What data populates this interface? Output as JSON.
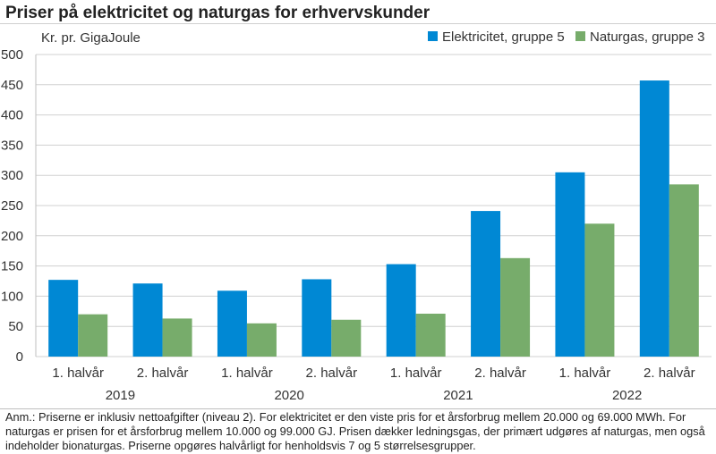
{
  "header": {
    "title": "Priser på elektricitet og naturgas for erhvervskunder"
  },
  "note": {
    "text": "Anm.: Priserne er inklusiv nettoafgifter (niveau 2). For elektricitet er den viste pris for et årsforbrug mellem 20.000 og 69.000 MWh. For naturgas er prisen for et årsforbrug mellem 10.000 og 99.000 GJ. Prisen dækker ledningsgas, der primært udgøres af naturgas, men også indeholder bionaturgas. Priserne opgøres halvårligt for henholdsvis 7 og 5 størrelsesgrupper."
  },
  "chart_data": {
    "type": "bar",
    "title": "Priser på elektricitet og naturgas for erhvervskunder",
    "ylabel": "Kr. pr. GigaJoule",
    "xlabel": "",
    "categories": [
      "1. halvår",
      "2. halvår",
      "1. halvår",
      "2. halvår",
      "1. halvår",
      "2. halvår",
      "1. halvår",
      "2. halvår"
    ],
    "groups": [
      {
        "label": "2019",
        "span": 2
      },
      {
        "label": "2020",
        "span": 2
      },
      {
        "label": "2021",
        "span": 2
      },
      {
        "label": "2022",
        "span": 2
      }
    ],
    "series": [
      {
        "name": "Elektricitet, gruppe 5",
        "color": "#0088d4",
        "values": [
          127,
          121,
          109,
          128,
          153,
          241,
          305,
          457
        ]
      },
      {
        "name": "Naturgas, gruppe 3",
        "color": "#77ac6b",
        "values": [
          70,
          63,
          55,
          61,
          71,
          163,
          220,
          285
        ]
      }
    ],
    "ylim": [
      0,
      500
    ],
    "yticks": [
      0,
      50,
      100,
      150,
      200,
      250,
      300,
      350,
      400,
      450,
      500
    ],
    "grid": true,
    "legend_position": "top-right"
  }
}
